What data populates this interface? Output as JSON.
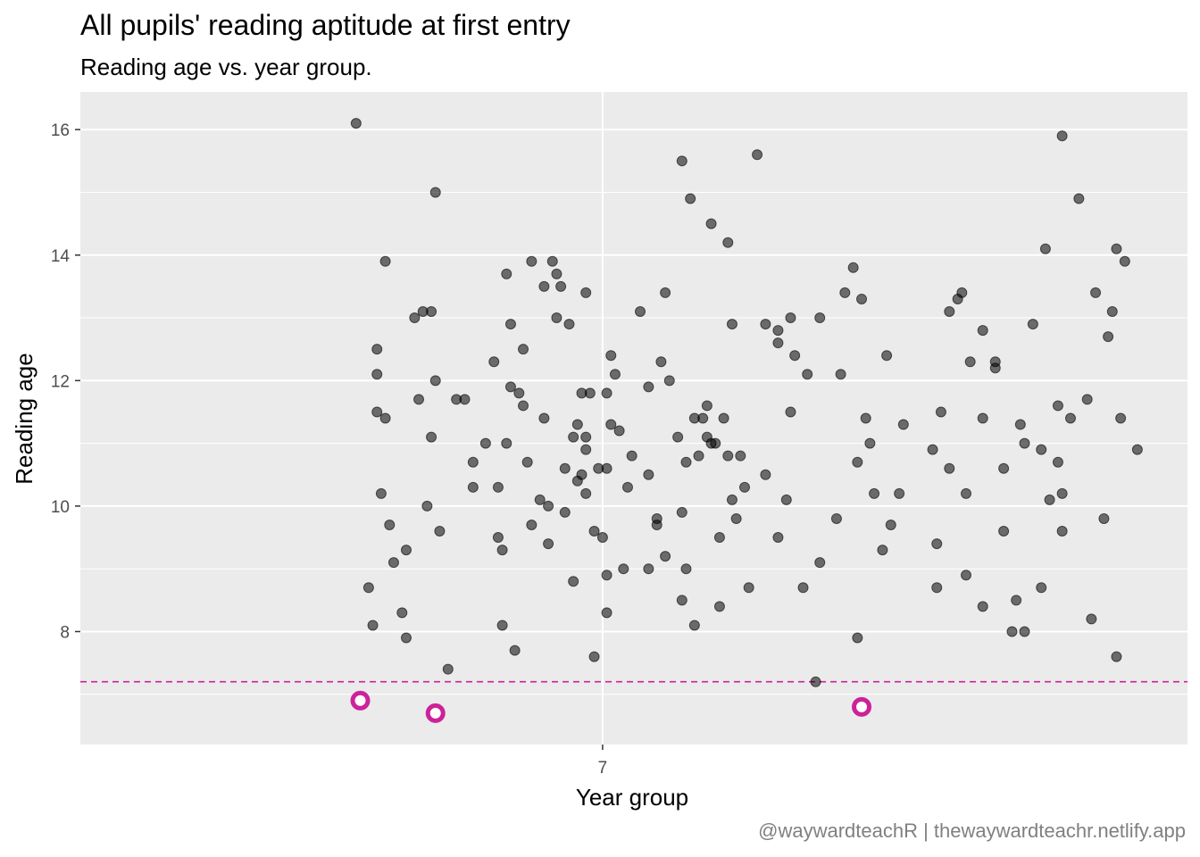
{
  "title": "All pupils' reading aptitude at first entry",
  "subtitle": "Reading age vs. year group.",
  "caption": "@waywardteachR | thewaywardteachr.netlify.app",
  "colors": {
    "panel": "#ebebeb",
    "grid": "#ffffff",
    "point": "#000000",
    "highlight": "#cc2299"
  },
  "chart_data": {
    "type": "scatter",
    "title": "All pupils' reading aptitude at first entry",
    "subtitle": "Reading age vs. year group.",
    "xlabel": "Year group",
    "ylabel": "Reading age",
    "x_tick_labels": [
      "7"
    ],
    "y_ticks": [
      8,
      10,
      12,
      14,
      16
    ],
    "ylim": [
      6.2,
      16.6
    ],
    "x_jitter_range": [
      6.2,
      7.8
    ],
    "grid": true,
    "threshold_line": {
      "y": 7.2,
      "style": "dashed"
    },
    "points": [
      [
        6.41,
        16.1
      ],
      [
        6.44,
        8.7
      ],
      [
        6.45,
        8.1
      ],
      [
        6.46,
        12.5
      ],
      [
        6.46,
        12.1
      ],
      [
        6.46,
        11.5
      ],
      [
        6.47,
        10.2
      ],
      [
        6.48,
        11.4
      ],
      [
        6.48,
        13.9
      ],
      [
        6.49,
        9.7
      ],
      [
        6.5,
        9.1
      ],
      [
        6.52,
        8.3
      ],
      [
        6.53,
        7.9
      ],
      [
        6.53,
        9.3
      ],
      [
        6.55,
        13.0
      ],
      [
        6.56,
        11.7
      ],
      [
        6.57,
        13.1
      ],
      [
        6.58,
        10.0
      ],
      [
        6.59,
        13.1
      ],
      [
        6.59,
        11.1
      ],
      [
        6.6,
        15.0
      ],
      [
        6.6,
        12.0
      ],
      [
        6.61,
        9.6
      ],
      [
        6.63,
        7.4
      ],
      [
        6.65,
        11.7
      ],
      [
        6.67,
        11.7
      ],
      [
        6.69,
        10.7
      ],
      [
        6.69,
        10.3
      ],
      [
        6.72,
        11.0
      ],
      [
        6.74,
        12.3
      ],
      [
        6.75,
        10.3
      ],
      [
        6.75,
        9.5
      ],
      [
        6.76,
        9.3
      ],
      [
        6.76,
        8.1
      ],
      [
        6.77,
        13.7
      ],
      [
        6.77,
        11.0
      ],
      [
        6.78,
        12.9
      ],
      [
        6.78,
        11.9
      ],
      [
        6.79,
        7.7
      ],
      [
        6.8,
        11.8
      ],
      [
        6.81,
        12.5
      ],
      [
        6.81,
        11.6
      ],
      [
        6.82,
        10.7
      ],
      [
        6.83,
        13.9
      ],
      [
        6.83,
        9.7
      ],
      [
        6.85,
        10.1
      ],
      [
        6.86,
        13.5
      ],
      [
        6.86,
        11.4
      ],
      [
        6.87,
        10.0
      ],
      [
        6.87,
        9.4
      ],
      [
        6.88,
        13.9
      ],
      [
        6.89,
        13.7
      ],
      [
        6.89,
        13.0
      ],
      [
        6.9,
        13.5
      ],
      [
        6.91,
        10.6
      ],
      [
        6.91,
        9.9
      ],
      [
        6.92,
        12.9
      ],
      [
        6.93,
        11.1
      ],
      [
        6.93,
        8.8
      ],
      [
        6.94,
        11.3
      ],
      [
        6.94,
        10.4
      ],
      [
        6.95,
        10.5
      ],
      [
        6.95,
        11.8
      ],
      [
        6.96,
        13.4
      ],
      [
        6.96,
        11.1
      ],
      [
        6.96,
        10.9
      ],
      [
        6.96,
        10.2
      ],
      [
        6.97,
        11.8
      ],
      [
        6.98,
        9.6
      ],
      [
        6.98,
        7.6
      ],
      [
        6.99,
        10.6
      ],
      [
        7.0,
        9.5
      ],
      [
        7.01,
        11.8
      ],
      [
        7.01,
        10.6
      ],
      [
        7.01,
        8.9
      ],
      [
        7.01,
        8.3
      ],
      [
        7.02,
        12.4
      ],
      [
        7.02,
        11.3
      ],
      [
        7.03,
        12.1
      ],
      [
        7.04,
        11.2
      ],
      [
        7.05,
        9.0
      ],
      [
        7.06,
        10.3
      ],
      [
        7.07,
        10.8
      ],
      [
        7.09,
        13.1
      ],
      [
        7.11,
        10.5
      ],
      [
        7.11,
        11.9
      ],
      [
        7.11,
        9.0
      ],
      [
        7.13,
        9.7
      ],
      [
        7.13,
        9.8
      ],
      [
        7.14,
        12.3
      ],
      [
        7.15,
        13.4
      ],
      [
        7.15,
        9.2
      ],
      [
        7.16,
        12.0
      ],
      [
        7.18,
        11.1
      ],
      [
        7.19,
        15.5
      ],
      [
        7.19,
        9.9
      ],
      [
        7.19,
        8.5
      ],
      [
        7.2,
        10.7
      ],
      [
        7.2,
        9.0
      ],
      [
        7.21,
        14.9
      ],
      [
        7.22,
        8.1
      ],
      [
        7.22,
        11.4
      ],
      [
        7.23,
        10.8
      ],
      [
        7.24,
        11.4
      ],
      [
        7.25,
        11.6
      ],
      [
        7.25,
        11.1
      ],
      [
        7.26,
        14.5
      ],
      [
        7.26,
        11.0
      ],
      [
        7.27,
        11.0
      ],
      [
        7.28,
        9.5
      ],
      [
        7.28,
        8.4
      ],
      [
        7.29,
        11.4
      ],
      [
        7.3,
        14.2
      ],
      [
        7.3,
        10.8
      ],
      [
        7.31,
        10.1
      ],
      [
        7.31,
        12.9
      ],
      [
        7.32,
        9.8
      ],
      [
        7.33,
        10.8
      ],
      [
        7.34,
        10.3
      ],
      [
        7.35,
        8.7
      ],
      [
        7.37,
        15.6
      ],
      [
        7.39,
        10.5
      ],
      [
        7.39,
        12.9
      ],
      [
        7.42,
        12.8
      ],
      [
        7.42,
        12.6
      ],
      [
        7.42,
        9.5
      ],
      [
        7.44,
        10.1
      ],
      [
        7.45,
        11.5
      ],
      [
        7.45,
        13.0
      ],
      [
        7.46,
        12.4
      ],
      [
        7.48,
        8.7
      ],
      [
        7.49,
        12.1
      ],
      [
        7.51,
        7.2
      ],
      [
        7.52,
        9.1
      ],
      [
        7.52,
        13.0
      ],
      [
        7.56,
        9.8
      ],
      [
        7.57,
        12.1
      ],
      [
        7.58,
        13.4
      ],
      [
        7.6,
        13.8
      ],
      [
        7.61,
        10.7
      ],
      [
        7.61,
        7.9
      ],
      [
        7.62,
        13.3
      ],
      [
        7.63,
        11.4
      ],
      [
        7.64,
        11.0
      ],
      [
        7.65,
        10.2
      ],
      [
        7.67,
        9.3
      ],
      [
        7.68,
        12.4
      ],
      [
        7.69,
        9.7
      ],
      [
        7.71,
        10.2
      ],
      [
        7.72,
        11.3
      ],
      [
        7.79,
        10.9
      ],
      [
        7.8,
        9.4
      ],
      [
        7.8,
        8.7
      ],
      [
        7.81,
        11.5
      ],
      [
        7.83,
        13.1
      ],
      [
        7.83,
        10.6
      ],
      [
        7.85,
        13.3
      ],
      [
        7.86,
        13.4
      ],
      [
        7.87,
        10.2
      ],
      [
        7.87,
        8.9
      ],
      [
        7.88,
        12.3
      ],
      [
        7.91,
        12.8
      ],
      [
        7.91,
        11.4
      ],
      [
        7.91,
        8.4
      ],
      [
        7.94,
        12.3
      ],
      [
        7.94,
        12.2
      ],
      [
        7.96,
        10.6
      ],
      [
        7.96,
        9.6
      ],
      [
        7.98,
        8.0
      ],
      [
        7.99,
        8.5
      ],
      [
        8.0,
        11.3
      ],
      [
        8.01,
        8.0
      ],
      [
        8.01,
        11.0
      ],
      [
        8.03,
        12.9
      ],
      [
        8.05,
        10.9
      ],
      [
        8.05,
        8.7
      ],
      [
        8.06,
        14.1
      ],
      [
        8.07,
        10.1
      ],
      [
        8.09,
        11.6
      ],
      [
        8.09,
        10.7
      ],
      [
        8.1,
        10.2
      ],
      [
        8.1,
        9.6
      ],
      [
        8.1,
        15.9
      ],
      [
        8.12,
        11.4
      ],
      [
        8.14,
        14.9
      ],
      [
        8.16,
        11.7
      ],
      [
        8.17,
        8.2
      ],
      [
        8.18,
        13.4
      ],
      [
        8.2,
        9.8
      ],
      [
        8.21,
        12.7
      ],
      [
        8.22,
        13.1
      ],
      [
        8.23,
        7.6
      ],
      [
        8.23,
        14.1
      ],
      [
        8.24,
        11.4
      ],
      [
        8.25,
        13.9
      ],
      [
        8.28,
        10.9
      ]
    ],
    "highlighted_points": [
      [
        6.42,
        6.9
      ],
      [
        6.6,
        6.7
      ],
      [
        7.62,
        6.8
      ]
    ]
  }
}
